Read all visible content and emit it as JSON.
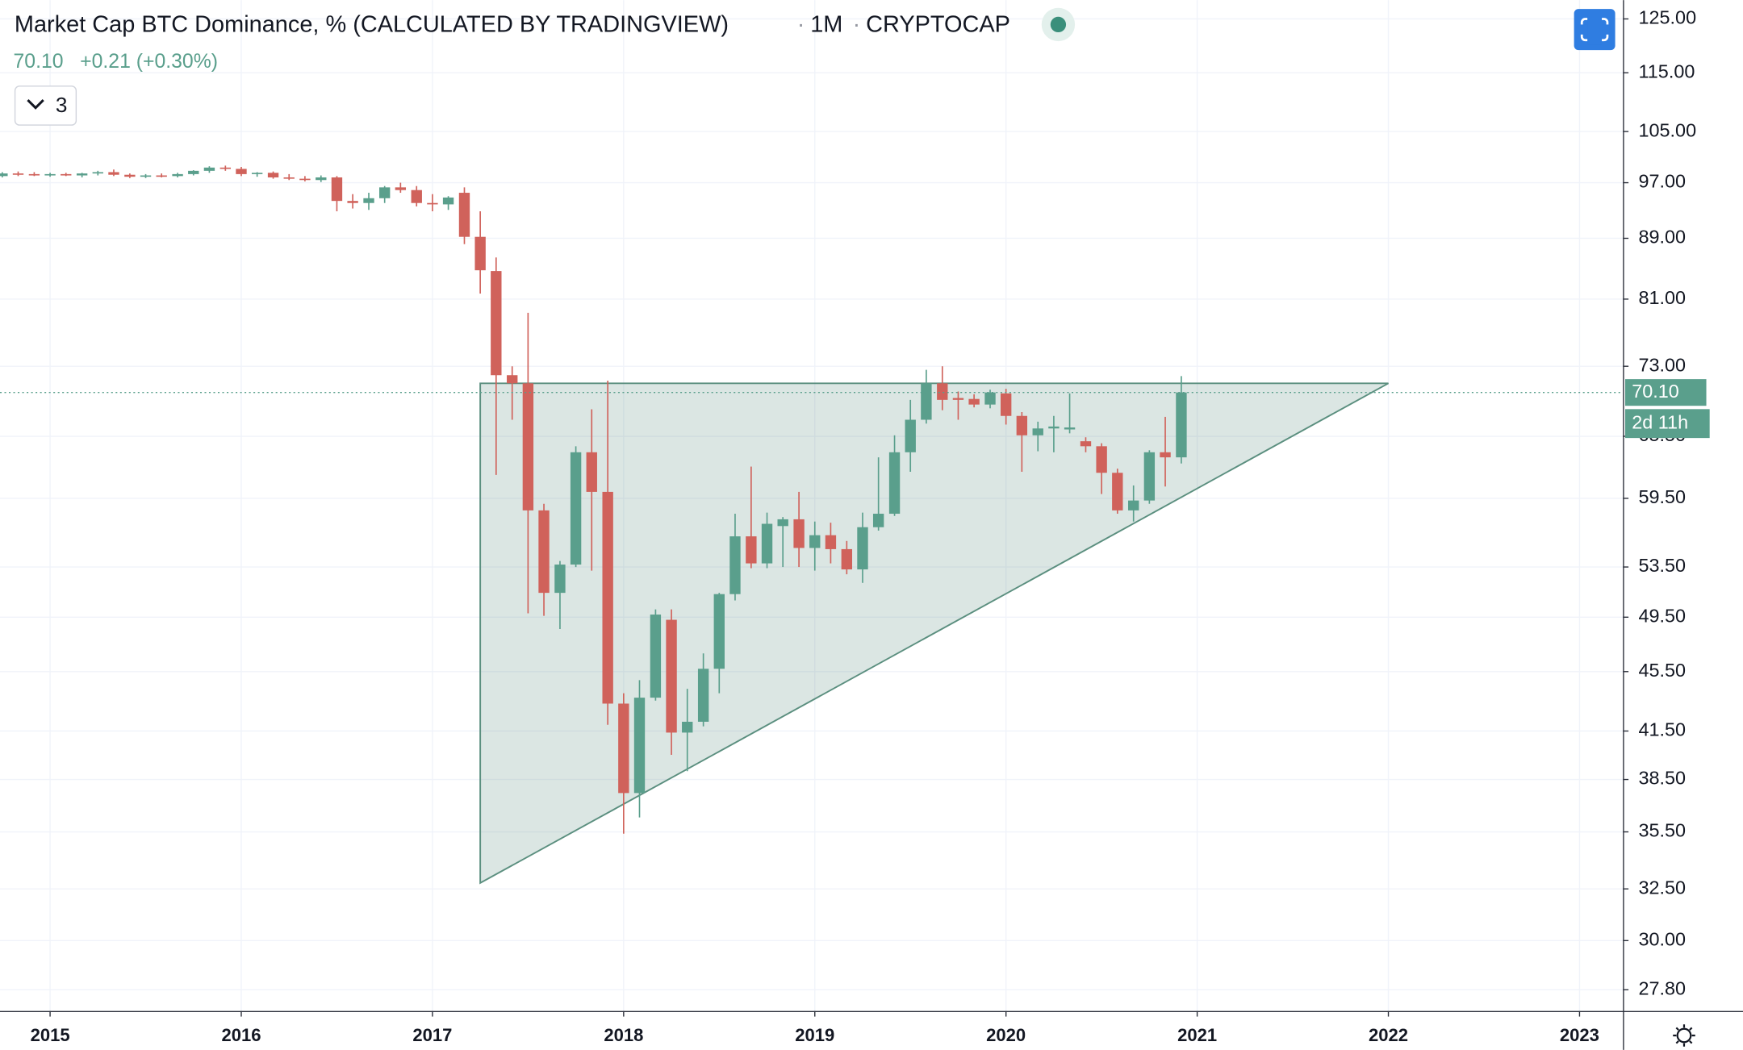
{
  "chart_data": {
    "type": "candlestick",
    "title": "Market Cap BTC Dominance, % (CALCULATED BY TRADINGVIEW)",
    "interval": "1M",
    "exchange": "CRYPTOCAP",
    "price_label": {
      "value": 70.1,
      "label": "70.10"
    },
    "change": "+0.21 (+0.30%)",
    "countdown": "2d 11h",
    "indicator_count": 3,
    "up_color": "#5a9f8c",
    "down_color": "#d0625b",
    "log_scale": true,
    "grid": true,
    "xlim": [
      2014.738,
      2023.227
    ],
    "ylim": [
      26.9,
      128.7
    ],
    "xticks": [
      2015,
      2016,
      2017,
      2018,
      2019,
      2020,
      2021,
      2022,
      2023
    ],
    "yticks": [
      {
        "value": 125,
        "label": "125.00"
      },
      {
        "value": 115,
        "label": "115.00"
      },
      {
        "value": 105,
        "label": "105.00"
      },
      {
        "value": 97,
        "label": "97.00"
      },
      {
        "value": 89,
        "label": "89.00"
      },
      {
        "value": 81,
        "label": "81.00"
      },
      {
        "value": 73,
        "label": "73.00"
      },
      {
        "value": 65.5,
        "label": "65.50"
      },
      {
        "value": 59.5,
        "label": "59.50"
      },
      {
        "value": 53.5,
        "label": "53.50"
      },
      {
        "value": 49.5,
        "label": "49.50"
      },
      {
        "value": 45.5,
        "label": "45.50"
      },
      {
        "value": 41.5,
        "label": "41.50"
      },
      {
        "value": 38.5,
        "label": "38.50"
      },
      {
        "value": 35.5,
        "label": "35.50"
      },
      {
        "value": 32.5,
        "label": "32.50"
      },
      {
        "value": 30,
        "label": "30.00"
      },
      {
        "value": 27.8,
        "label": "27.80"
      }
    ],
    "x": [
      2014.75,
      2014.833,
      2014.917,
      2015,
      2015.083,
      2015.167,
      2015.25,
      2015.333,
      2015.417,
      2015.5,
      2015.583,
      2015.667,
      2015.75,
      2015.833,
      2015.917,
      2016,
      2016.083,
      2016.167,
      2016.25,
      2016.333,
      2016.417,
      2016.5,
      2016.583,
      2016.667,
      2016.75,
      2016.833,
      2016.917,
      2017,
      2017.083,
      2017.167,
      2017.25,
      2017.333,
      2017.417,
      2017.5,
      2017.583,
      2017.667,
      2017.75,
      2017.833,
      2017.917,
      2018,
      2018.083,
      2018.167,
      2018.25,
      2018.333,
      2018.417,
      2018.5,
      2018.583,
      2018.667,
      2018.75,
      2018.833,
      2018.917,
      2019,
      2019.083,
      2019.167,
      2019.25,
      2019.333,
      2019.417,
      2019.5,
      2019.583,
      2019.667,
      2019.75,
      2019.833,
      2019.917,
      2020,
      2020.083,
      2020.167,
      2020.25,
      2020.333,
      2020.417,
      2020.5,
      2020.583,
      2020.667,
      2020.75,
      2020.833,
      2020.917
    ],
    "open": [
      98.0,
      98.4,
      98.3,
      98.2,
      98.3,
      98.1,
      98.4,
      98.6,
      98.2,
      97.9,
      98.1,
      98.0,
      98.3,
      98.8,
      99.3,
      99.1,
      98.3,
      98.5,
      97.8,
      97.6,
      97.4,
      97.8,
      94.3,
      94.0,
      94.7,
      96.3,
      95.9,
      94.0,
      93.8,
      95.5,
      89.2,
      84.6,
      72.0,
      71.1,
      58.4,
      51.4,
      53.7,
      63.9,
      60.1,
      43.3,
      37.7,
      43.7,
      49.3,
      41.4,
      42.1,
      45.7,
      51.3,
      56.1,
      53.8,
      57.0,
      57.6,
      55.1,
      56.2,
      55.0,
      53.3,
      56.9,
      58.1,
      63.9,
      67.2,
      71.1,
      69.5,
      69.4,
      68.8,
      70.0,
      67.6,
      65.6,
      66.3,
      66.2,
      65.0,
      64.5,
      61.9,
      58.4,
      59.3,
      63.9,
      63.4
    ],
    "high": [
      98.6,
      98.7,
      98.6,
      98.5,
      98.5,
      98.5,
      98.8,
      99.0,
      98.4,
      98.3,
      98.4,
      98.5,
      98.9,
      99.5,
      99.6,
      99.4,
      98.6,
      98.7,
      98.3,
      98.0,
      98.1,
      98.0,
      95.3,
      95.5,
      96.5,
      97.0,
      96.5,
      95.3,
      95.0,
      96.3,
      92.8,
      86.4,
      73.0,
      79.3,
      59.0,
      54.0,
      64.5,
      68.3,
      71.4,
      44.0,
      44.9,
      50.1,
      50.1,
      44.3,
      46.8,
      51.4,
      58.1,
      62.5,
      58.2,
      57.8,
      60.1,
      57.4,
      57.3,
      55.7,
      58.2,
      63.4,
      65.6,
      69.3,
      72.6,
      73.0,
      70.2,
      69.9,
      70.4,
      70.5,
      68.0,
      67.0,
      67.6,
      70.0,
      65.4,
      64.8,
      62.3,
      60.7,
      64.1,
      67.5,
      71.9
    ],
    "low": [
      97.8,
      98.0,
      98.0,
      97.9,
      98.0,
      97.8,
      98.1,
      98.0,
      97.7,
      97.7,
      97.8,
      97.8,
      98.1,
      98.5,
      98.8,
      98.0,
      97.9,
      97.6,
      97.4,
      97.2,
      97.1,
      92.8,
      93.2,
      93.0,
      94.0,
      95.5,
      93.5,
      92.8,
      93.0,
      88.2,
      81.7,
      61.7,
      67.2,
      49.8,
      49.6,
      48.6,
      53.5,
      53.2,
      41.9,
      35.4,
      36.3,
      43.5,
      40.0,
      39.0,
      41.8,
      44.0,
      50.8,
      53.4,
      53.4,
      53.5,
      53.5,
      53.2,
      53.8,
      52.9,
      52.2,
      56.6,
      57.9,
      62.0,
      66.8,
      68.2,
      67.2,
      68.5,
      68.4,
      66.7,
      62.0,
      64.0,
      63.9,
      65.8,
      63.9,
      59.9,
      58.1,
      57.4,
      59.0,
      60.6,
      62.8
    ],
    "close": [
      98.4,
      98.3,
      98.2,
      98.3,
      98.1,
      98.4,
      98.6,
      98.2,
      97.9,
      98.1,
      98.0,
      98.3,
      98.8,
      99.3,
      99.1,
      98.3,
      98.5,
      97.8,
      97.6,
      97.4,
      97.8,
      94.3,
      94.0,
      94.7,
      96.3,
      95.9,
      94.0,
      93.8,
      94.8,
      89.2,
      84.7,
      72.0,
      71.1,
      58.4,
      51.4,
      53.7,
      63.9,
      60.1,
      43.3,
      37.7,
      43.7,
      49.7,
      41.4,
      42.1,
      45.7,
      51.3,
      56.1,
      53.8,
      57.2,
      57.6,
      55.1,
      56.2,
      55.0,
      53.3,
      56.9,
      58.1,
      63.9,
      67.2,
      71.1,
      69.3,
      69.3,
      68.8,
      70.1,
      67.6,
      65.6,
      66.3,
      66.5,
      66.4,
      64.5,
      61.9,
      58.4,
      59.3,
      63.9,
      63.4,
      70.1
    ],
    "triangle": {
      "x": [
        2017.25,
        2022,
        2017.25
      ],
      "y": [
        71.1,
        71.1,
        32.8
      ],
      "color": "#5b8f7f"
    }
  }
}
